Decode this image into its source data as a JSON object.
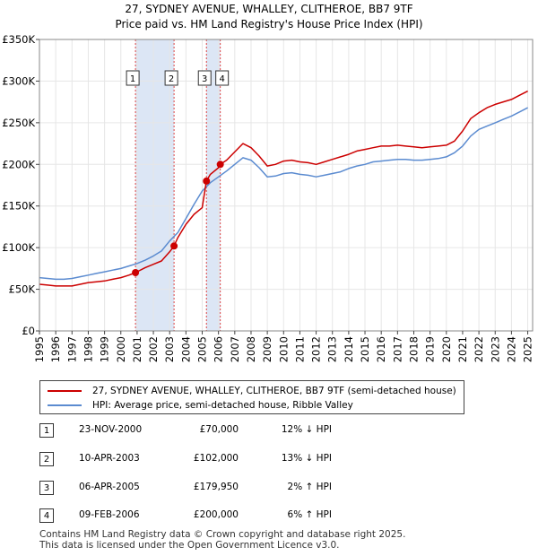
{
  "title_line1": "27, SYDNEY AVENUE, WHALLEY, CLITHEROE, BB7 9TF",
  "title_line2": "Price paid vs. HM Land Registry's House Price Index (HPI)",
  "colors": {
    "property": "#cc0000",
    "hpi": "#5b8bd0",
    "shade": "#dce6f5",
    "grid": "#e6e6e6",
    "vline": "#dd4444"
  },
  "legend": {
    "property": "27, SYDNEY AVENUE, WHALLEY, CLITHEROE, BB7 9TF (semi-detached house)",
    "hpi": "HPI: Average price, semi-detached house, Ribble Valley"
  },
  "sales": [
    {
      "num": "1",
      "date": "23-NOV-2000",
      "price": "£70,000",
      "hpi": "12% ↓ HPI"
    },
    {
      "num": "2",
      "date": "10-APR-2003",
      "price": "£102,000",
      "hpi": "13% ↓ HPI"
    },
    {
      "num": "3",
      "date": "06-APR-2005",
      "price": "£179,950",
      "hpi": "2% ↑ HPI"
    },
    {
      "num": "4",
      "date": "09-FEB-2006",
      "price": "£200,000",
      "hpi": "6% ↑ HPI"
    }
  ],
  "footer": {
    "line1": "Contains HM Land Registry data © Crown copyright and database right 2025.",
    "line2": "This data is licensed under the Open Government Licence v3.0."
  },
  "chart_data": {
    "type": "line",
    "title": "27, SYDNEY AVENUE, WHALLEY, CLITHEROE, BB7 9TF — Price paid vs. HM Land Registry's House Price Index (HPI)",
    "xlabel": "",
    "ylabel": "",
    "xlim": [
      1995,
      2025.3
    ],
    "ylim": [
      0,
      350000
    ],
    "y_ticks": [
      0,
      50000,
      100000,
      150000,
      200000,
      250000,
      300000,
      350000
    ],
    "y_tick_labels": [
      "£0",
      "£50K",
      "£100K",
      "£150K",
      "£200K",
      "£250K",
      "£300K",
      "£350K"
    ],
    "x_ticks": [
      1995,
      1996,
      1997,
      1998,
      1999,
      2000,
      2001,
      2002,
      2003,
      2004,
      2005,
      2006,
      2007,
      2008,
      2009,
      2010,
      2011,
      2012,
      2013,
      2014,
      2015,
      2016,
      2017,
      2018,
      2019,
      2020,
      2021,
      2022,
      2023,
      2024,
      2025
    ],
    "grid": true,
    "shaded_periods": [
      [
        2000.9,
        2003.27
      ],
      [
        2005.26,
        2006.11
      ]
    ],
    "sale_markers": [
      {
        "label": "1",
        "x": 2000.9,
        "y": 70000
      },
      {
        "label": "2",
        "x": 2003.27,
        "y": 102000
      },
      {
        "label": "3",
        "x": 2005.26,
        "y": 179950
      },
      {
        "label": "4",
        "x": 2006.11,
        "y": 200000
      }
    ],
    "series": [
      {
        "name": "27, SYDNEY AVENUE, WHALLEY, CLITHEROE, BB7 9TF (semi-detached house)",
        "x": [
          1995,
          1995.5,
          1996,
          1996.5,
          1997,
          1997.5,
          1998,
          1998.5,
          1999,
          1999.5,
          2000,
          2000.5,
          2000.9,
          2001.5,
          2002,
          2002.5,
          2003,
          2003.27,
          2003.5,
          2004,
          2004.5,
          2005,
          2005.26,
          2005.5,
          2006,
          2006.11,
          2006.5,
          2007,
          2007.5,
          2008,
          2008.5,
          2009,
          2009.5,
          2010,
          2010.5,
          2011,
          2011.5,
          2012,
          2012.5,
          2013,
          2013.5,
          2014,
          2014.5,
          2015,
          2015.5,
          2016,
          2016.5,
          2017,
          2017.5,
          2018,
          2018.5,
          2019,
          2019.5,
          2020,
          2020.5,
          2021,
          2021.5,
          2022,
          2022.5,
          2023,
          2023.5,
          2024,
          2024.5,
          2025
        ],
        "values": [
          56000,
          55000,
          54000,
          54000,
          54000,
          56000,
          58000,
          59000,
          60000,
          62000,
          64000,
          67000,
          70000,
          76000,
          80000,
          84000,
          95000,
          102000,
          112000,
          128000,
          140000,
          148000,
          179950,
          188000,
          196000,
          200000,
          205000,
          215000,
          225000,
          220000,
          210000,
          198000,
          200000,
          204000,
          205000,
          203000,
          202000,
          200000,
          203000,
          206000,
          209000,
          212000,
          216000,
          218000,
          220000,
          222000,
          222000,
          223000,
          222000,
          221000,
          220000,
          221000,
          222000,
          223000,
          228000,
          240000,
          255000,
          262000,
          268000,
          272000,
          275000,
          278000,
          283000,
          288000
        ]
      },
      {
        "name": "HPI: Average price, semi-detached house, Ribble Valley",
        "x": [
          1995,
          1995.5,
          1996,
          1996.5,
          1997,
          1997.5,
          1998,
          1998.5,
          1999,
          1999.5,
          2000,
          2000.5,
          2001,
          2001.5,
          2002,
          2002.5,
          2003,
          2003.5,
          2004,
          2004.5,
          2005,
          2005.5,
          2006,
          2006.5,
          2007,
          2007.5,
          2008,
          2008.5,
          2009,
          2009.5,
          2010,
          2010.5,
          2011,
          2011.5,
          2012,
          2012.5,
          2013,
          2013.5,
          2014,
          2014.5,
          2015,
          2015.5,
          2016,
          2016.5,
          2017,
          2017.5,
          2018,
          2018.5,
          2019,
          2019.5,
          2020,
          2020.5,
          2021,
          2021.5,
          2022,
          2022.5,
          2023,
          2023.5,
          2024,
          2024.5,
          2025
        ],
        "values": [
          64000,
          63000,
          62000,
          62000,
          63000,
          65000,
          67000,
          69000,
          71000,
          73000,
          75000,
          78000,
          81000,
          85000,
          90000,
          96000,
          108000,
          118000,
          135000,
          152000,
          168000,
          178000,
          185000,
          192000,
          200000,
          208000,
          205000,
          196000,
          185000,
          186000,
          189000,
          190000,
          188000,
          187000,
          185000,
          187000,
          189000,
          191000,
          195000,
          198000,
          200000,
          203000,
          204000,
          205000,
          206000,
          206000,
          205000,
          205000,
          206000,
          207000,
          209000,
          214000,
          222000,
          234000,
          242000,
          246000,
          250000,
          254000,
          258000,
          263000,
          268000
        ]
      }
    ]
  }
}
